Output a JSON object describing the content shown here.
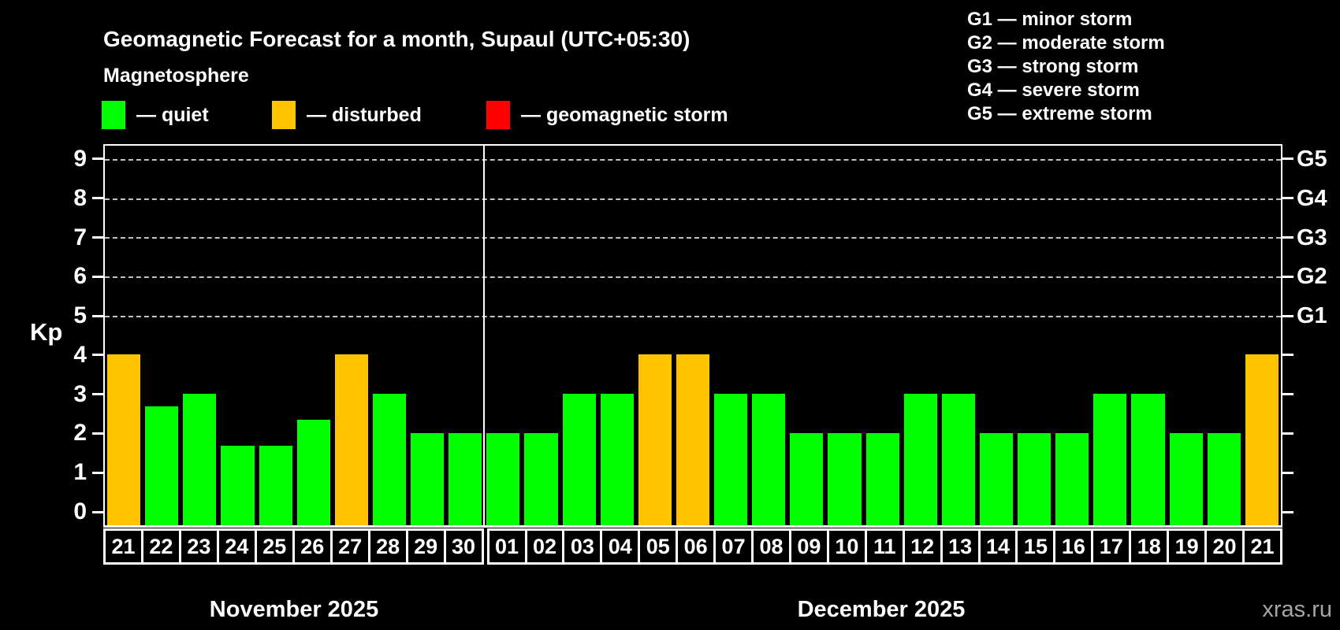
{
  "header": {
    "title": "Geomagnetic Forecast for a month, Supaul (UTC+05:30)",
    "subtitle": "Magnetosphere",
    "color_legend": [
      {
        "name": "quiet",
        "label": "— quiet",
        "color": "#00ff00"
      },
      {
        "name": "disturbed",
        "label": "— disturbed",
        "color": "#ffc400"
      },
      {
        "name": "geomagnetic-storm",
        "label": "— geomagnetic storm",
        "color": "#ff0000"
      }
    ],
    "g_scale_legend": [
      "G1 — minor storm",
      "G2 — moderate storm",
      "G3 — strong storm",
      "G4 — severe storm",
      "G5 — extreme storm"
    ]
  },
  "chart_data": {
    "type": "bar",
    "title": "Geomagnetic Forecast for a month, Supaul (UTC+05:30)",
    "ylabel": "Kp",
    "ylim": [
      -0.36,
      9.34
    ],
    "y_ticks": [
      0,
      1,
      2,
      3,
      4,
      5,
      6,
      7,
      8,
      9
    ],
    "grid_levels": [
      5,
      6,
      7,
      8,
      9
    ],
    "grid_on": true,
    "legend_position": "top",
    "right_axis_labels": [
      {
        "label": "G1",
        "kp": 5
      },
      {
        "label": "G2",
        "kp": 6
      },
      {
        "label": "G3",
        "kp": 7
      },
      {
        "label": "G4",
        "kp": 8
      },
      {
        "label": "G5",
        "kp": 9
      }
    ],
    "colors": {
      "quiet": "#00ff00",
      "disturbed": "#ffc400",
      "storm": "#ff0000"
    },
    "months": [
      {
        "label": "November 2025",
        "days": 10
      },
      {
        "label": "December 2025",
        "days": 21
      }
    ],
    "days": [
      {
        "date": "21",
        "kp": 4.0,
        "condition": "disturbed"
      },
      {
        "date": "22",
        "kp": 2.67,
        "condition": "quiet"
      },
      {
        "date": "23",
        "kp": 3.0,
        "condition": "quiet"
      },
      {
        "date": "24",
        "kp": 1.67,
        "condition": "quiet"
      },
      {
        "date": "25",
        "kp": 1.67,
        "condition": "quiet"
      },
      {
        "date": "26",
        "kp": 2.33,
        "condition": "quiet"
      },
      {
        "date": "27",
        "kp": 4.0,
        "condition": "disturbed"
      },
      {
        "date": "28",
        "kp": 3.0,
        "condition": "quiet"
      },
      {
        "date": "29",
        "kp": 2.0,
        "condition": "quiet"
      },
      {
        "date": "30",
        "kp": 2.0,
        "condition": "quiet"
      },
      {
        "date": "01",
        "kp": 2.0,
        "condition": "quiet"
      },
      {
        "date": "02",
        "kp": 2.0,
        "condition": "quiet"
      },
      {
        "date": "03",
        "kp": 3.0,
        "condition": "quiet"
      },
      {
        "date": "04",
        "kp": 3.0,
        "condition": "quiet"
      },
      {
        "date": "05",
        "kp": 4.0,
        "condition": "disturbed"
      },
      {
        "date": "06",
        "kp": 4.0,
        "condition": "disturbed"
      },
      {
        "date": "07",
        "kp": 3.0,
        "condition": "quiet"
      },
      {
        "date": "08",
        "kp": 3.0,
        "condition": "quiet"
      },
      {
        "date": "09",
        "kp": 2.0,
        "condition": "quiet"
      },
      {
        "date": "10",
        "kp": 2.0,
        "condition": "quiet"
      },
      {
        "date": "11",
        "kp": 2.0,
        "condition": "quiet"
      },
      {
        "date": "12",
        "kp": 3.0,
        "condition": "quiet"
      },
      {
        "date": "13",
        "kp": 3.0,
        "condition": "quiet"
      },
      {
        "date": "14",
        "kp": 2.0,
        "condition": "quiet"
      },
      {
        "date": "15",
        "kp": 2.0,
        "condition": "quiet"
      },
      {
        "date": "16",
        "kp": 2.0,
        "condition": "quiet"
      },
      {
        "date": "17",
        "kp": 3.0,
        "condition": "quiet"
      },
      {
        "date": "18",
        "kp": 3.0,
        "condition": "quiet"
      },
      {
        "date": "19",
        "kp": 2.0,
        "condition": "quiet"
      },
      {
        "date": "20",
        "kp": 2.0,
        "condition": "quiet"
      },
      {
        "date": "21",
        "kp": 4.0,
        "condition": "disturbed"
      }
    ]
  },
  "watermark": "xras.ru"
}
